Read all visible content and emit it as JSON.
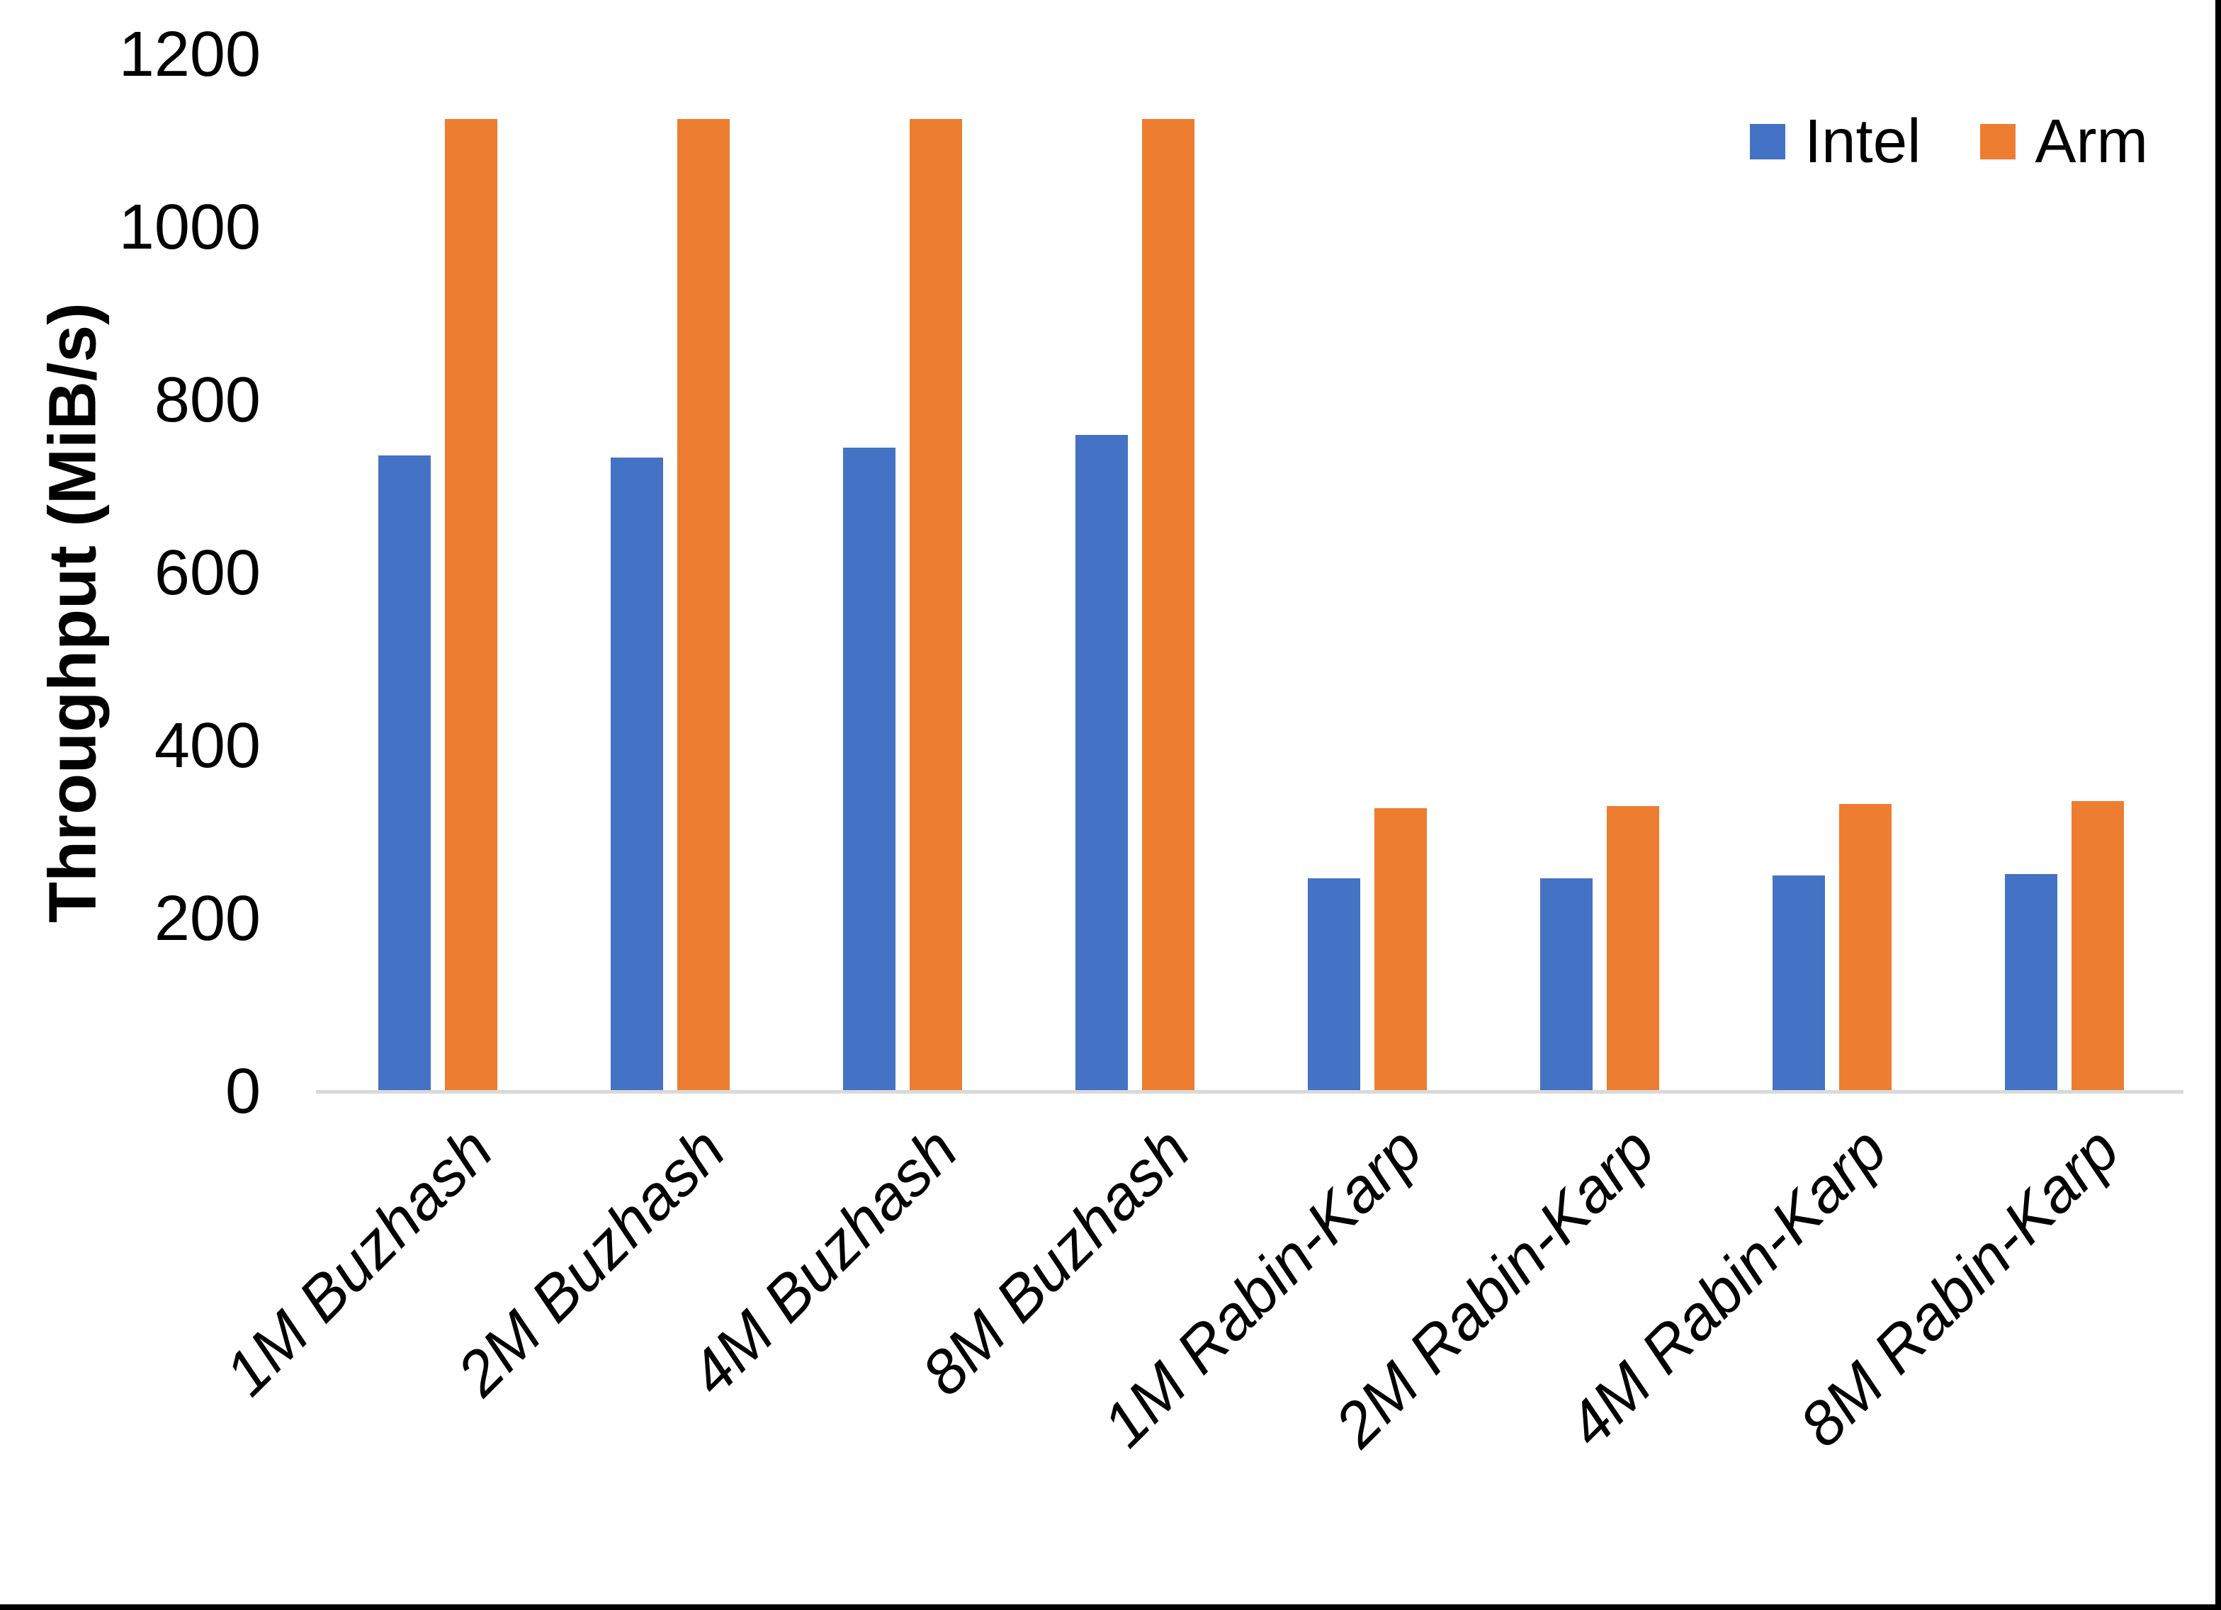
{
  "chart_data": {
    "type": "bar",
    "title": "",
    "xlabel": "",
    "ylabel": "Throughput (MiB/s)",
    "categories": [
      "1M Buzhash",
      "2M Buzhash",
      "4M Buzhash",
      "8M Buzhash",
      "1M Rabin-Karp",
      "2M Rabin-Karp",
      "4M Rabin-Karp",
      "8M Rabin-Karp"
    ],
    "series": [
      {
        "name": "Intel",
        "color": "#4472C4",
        "values": [
          736,
          734,
          745,
          760,
          247,
          247,
          250,
          252
        ]
      },
      {
        "name": "Arm",
        "color": "#ED7D31",
        "values": [
          1125,
          1125,
          1125,
          1125,
          328,
          330,
          333,
          336
        ]
      }
    ],
    "ylim": [
      0,
      1200
    ],
    "yticks": [
      0,
      200,
      400,
      600,
      800,
      1000,
      1200
    ],
    "grid": false,
    "legend_position": "top-right"
  },
  "colors": {
    "background": "#FFFFFF",
    "axis_line": "#D9D9D9",
    "text": "#000000",
    "frame": "#000000",
    "intel": "#4472C4",
    "arm": "#ED7D31"
  }
}
